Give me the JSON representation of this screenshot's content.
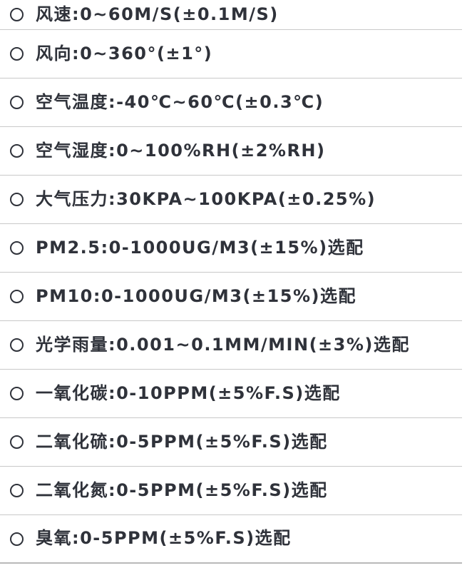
{
  "list": {
    "items": [
      {
        "label": "风速:0~60M/S(±0.1M/S)"
      },
      {
        "label": "风向:0~360°(±1°)"
      },
      {
        "label": "空气温度:-40℃~60℃(±0.3℃)"
      },
      {
        "label": "空气湿度:0~100%RH(±2%RH)"
      },
      {
        "label": "大气压力:30KPA~100KPA(±0.25%)"
      },
      {
        "label": "PM2.5:0-1000UG/M3(±15%)选配"
      },
      {
        "label": "PM10:0-1000UG/M3(±15%)选配"
      },
      {
        "label": "光学雨量:0.001~0.1MM/MIN(±3%)选配"
      },
      {
        "label": "一氧化碳:0-10PPM(±5%F.S)选配"
      },
      {
        "label": "二氧化硫:0-5PPM(±5%F.S)选配"
      },
      {
        "label": "二氧化氮:0-5PPM(±5%F.S)选配"
      },
      {
        "label": "臭氧:0-5PPM(±5%F.S)选配"
      }
    ]
  },
  "colors": {
    "text": "#2f323a",
    "divider": "#c9c9c9",
    "bottom_divider": "#b9b9b9",
    "background": "#ffffff"
  },
  "icons": {
    "bullet": "circle-outline-icon"
  }
}
